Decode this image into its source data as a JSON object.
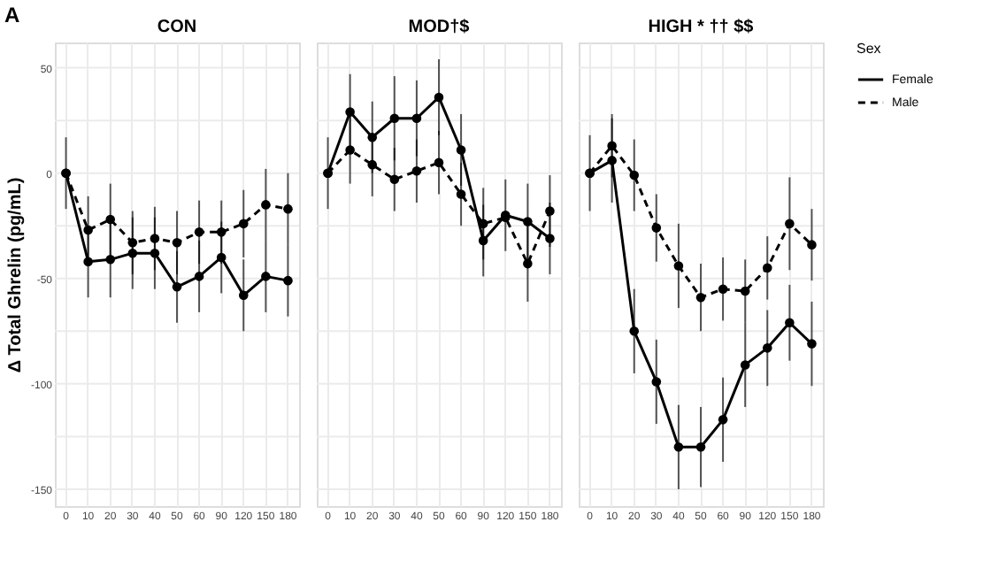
{
  "chart_data": [
    {
      "type": "line",
      "title": "CON",
      "ylabel": "Δ Total Ghrelin (pg/mL)",
      "annotations": [
        "A"
      ],
      "categories": [
        "0",
        "10",
        "20",
        "30",
        "40",
        "50",
        "60",
        "90",
        "120",
        "150",
        "180"
      ],
      "ylim": [
        -158,
        62
      ],
      "yticks": [
        50,
        {
          "value": 25,
          "label": null
        },
        0,
        {
          "value": -25,
          "label": null
        },
        -50,
        {
          "value": -75,
          "label": null
        },
        -100,
        {
          "value": -125,
          "label": null
        },
        -150
      ],
      "grid": true,
      "marker": "circle",
      "legend": "right",
      "series": [
        {
          "name": "Female",
          "color": "#000000",
          "line_style": "solid",
          "values": [
            0,
            -42,
            -41,
            -38,
            -38,
            -54,
            -49,
            -40,
            -58,
            -49,
            -51
          ],
          "errors": [
            17,
            17,
            18,
            17,
            17,
            17,
            17,
            17,
            17,
            17,
            17
          ]
        },
        {
          "name": "Male",
          "color": "#000000",
          "line_style": "dashed",
          "values": [
            0,
            -27,
            -22,
            -33,
            -31,
            -33,
            -28,
            -28,
            -24,
            -15,
            -17
          ],
          "errors": [
            null,
            16,
            17,
            15,
            15,
            15,
            15,
            15,
            16,
            17,
            17
          ]
        }
      ]
    },
    {
      "type": "line",
      "title": "MOD†$",
      "categories": [
        "0",
        "10",
        "20",
        "30",
        "40",
        "50",
        "60",
        "90",
        "120",
        "150",
        "180"
      ],
      "ylim": [
        -158,
        62
      ],
      "yticks": [
        50,
        {
          "value": 25,
          "label": null
        },
        0,
        {
          "value": -25,
          "label": null
        },
        -50,
        {
          "value": -75,
          "label": null
        },
        -100,
        {
          "value": -125,
          "label": null
        },
        -150
      ],
      "grid": true,
      "marker": "circle",
      "legend": "right",
      "tick_labels": "x",
      "series": [
        {
          "name": "Female",
          "color": "#000000",
          "line_style": "solid",
          "values": [
            0,
            29,
            17,
            26,
            26,
            36,
            11,
            -32,
            -20,
            -23,
            -31
          ],
          "errors": [
            17,
            18,
            17,
            20,
            18,
            18,
            17,
            17,
            17,
            18,
            17
          ]
        },
        {
          "name": "Male",
          "color": "#000000",
          "line_style": "dashed",
          "values": [
            0,
            11,
            4,
            -3,
            1,
            5,
            -10,
            -24,
            -21,
            -43,
            -18
          ],
          "errors": [
            null,
            16,
            15,
            15,
            15,
            15,
            15,
            17,
            null,
            18,
            17
          ]
        }
      ]
    },
    {
      "type": "line",
      "title": "HIGH * †† $$",
      "legend_title": "Sex",
      "categories": [
        "0",
        "10",
        "20",
        "30",
        "40",
        "50",
        "60",
        "90",
        "120",
        "150",
        "180"
      ],
      "ylim": [
        -158,
        62
      ],
      "yticks": [
        50,
        {
          "value": 25,
          "label": null
        },
        0,
        {
          "value": -25,
          "label": null
        },
        -50,
        {
          "value": -75,
          "label": null
        },
        -100,
        {
          "value": -125,
          "label": null
        },
        -150
      ],
      "grid": true,
      "marker": "circle",
      "legend": "right",
      "tick_labels": "x",
      "series": [
        {
          "name": "Female",
          "color": "#000000",
          "line_style": "solid",
          "values": [
            0,
            6,
            -75,
            -99,
            -130,
            -130,
            -117,
            -91,
            -83,
            -71,
            -81
          ],
          "errors": [
            18,
            20,
            20,
            20,
            20,
            19,
            20,
            20,
            18,
            18,
            20
          ]
        },
        {
          "name": "Male",
          "color": "#000000",
          "line_style": "dashed",
          "values": [
            0,
            13,
            -1,
            -26,
            -44,
            -59,
            -55,
            -56,
            -45,
            -24,
            -34
          ],
          "errors": [
            null,
            15,
            17,
            16,
            20,
            16,
            15,
            15,
            15,
            22,
            17
          ]
        }
      ]
    }
  ]
}
